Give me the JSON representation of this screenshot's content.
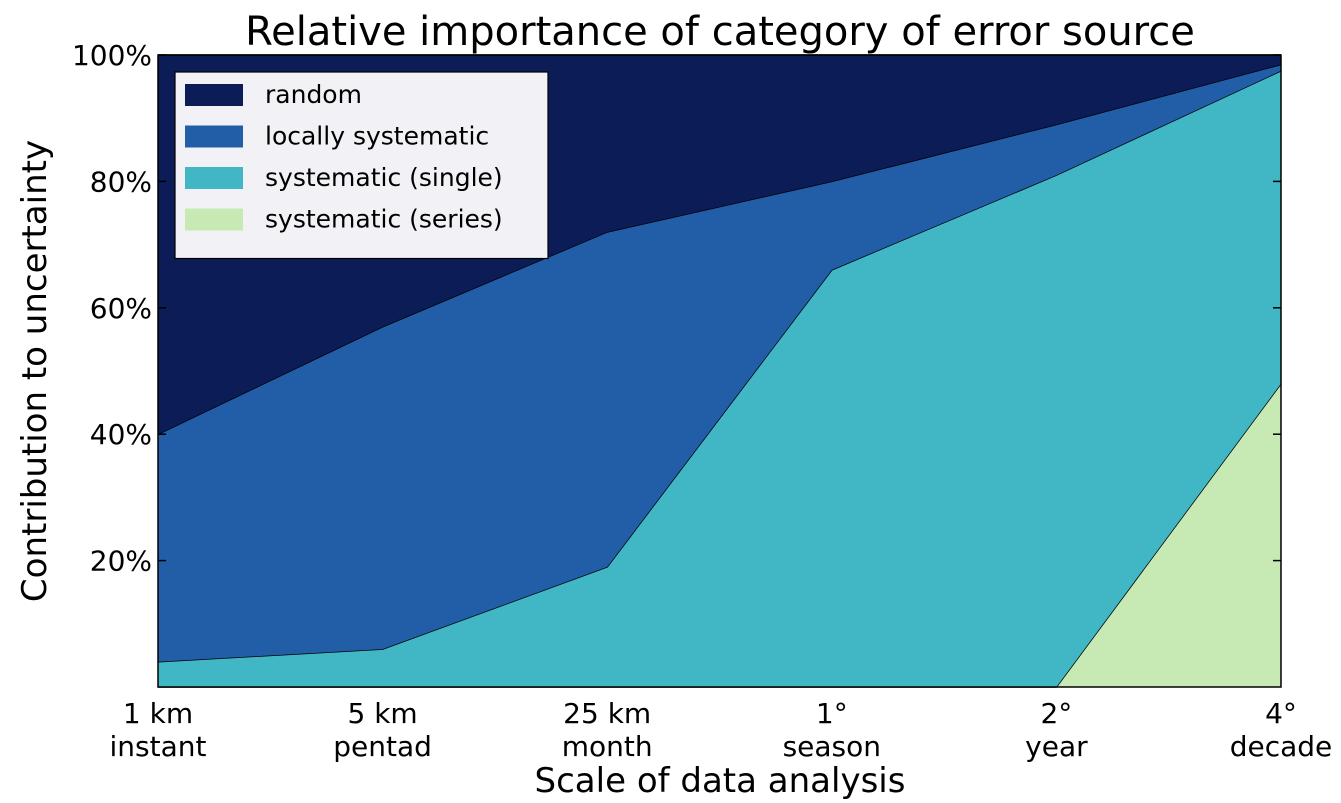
{
  "chart_data": {
    "type": "stacked_area",
    "title": "Relative importance of category of error source",
    "x_label": "Scale of data analysis",
    "y_label": "Contribution to uncertainty",
    "categories": [
      [
        "1 km",
        "instant"
      ],
      [
        "5 km",
        "pentad"
      ],
      [
        "25 km",
        "month"
      ],
      [
        "1°",
        "season"
      ],
      [
        "2°",
        "year"
      ],
      [
        "4°",
        "decade"
      ]
    ],
    "series": [
      {
        "name": "random",
        "color": "#0b1c56",
        "values": [
          60,
          43,
          28,
          20,
          11,
          1.5
        ]
      },
      {
        "name": "locally systematic",
        "color": "#225ea8",
        "values": [
          36,
          51,
          53,
          14,
          8,
          1
        ]
      },
      {
        "name": "systematic (single)",
        "color": "#41b6c4",
        "values": [
          4,
          6,
          19,
          66,
          81,
          49.5
        ]
      },
      {
        "name": "systematic (series)",
        "color": "#c7e9b4",
        "values": [
          0,
          0,
          0,
          0,
          0,
          48
        ]
      }
    ],
    "ylim": [
      0,
      100
    ],
    "yticks": [
      {
        "value": 20,
        "label": "20%"
      },
      {
        "value": 40,
        "label": "40%"
      },
      {
        "value": 60,
        "label": "60%"
      },
      {
        "value": 80,
        "label": "80%"
      },
      {
        "value": 100,
        "label": "100%"
      }
    ],
    "legend": "upper left"
  }
}
